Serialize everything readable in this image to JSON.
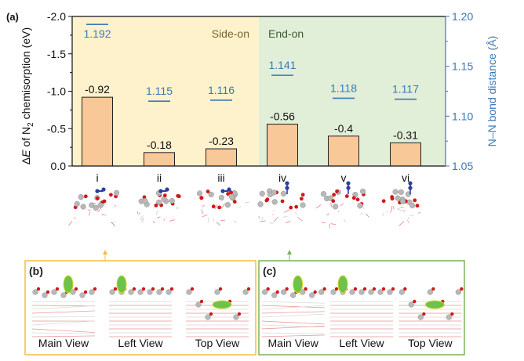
{
  "chart_data": {
    "type": "bar",
    "panel_label": "(a)",
    "categories": [
      "i",
      "ii",
      "iii",
      "iv",
      "v",
      "vi"
    ],
    "series": [
      {
        "name": "ΔE of N2 chemisorption (eV)",
        "axis": "left",
        "values": [
          -0.92,
          -0.18,
          -0.23,
          -0.56,
          -0.4,
          -0.31
        ],
        "labels": [
          "-0.92",
          "-0.18",
          "-0.23",
          "-0.56",
          "-0.4",
          "-0.31"
        ],
        "color": "#f9c898"
      },
      {
        "name": "N–N bond distance (Å)",
        "axis": "right",
        "values": [
          1.192,
          1.115,
          1.116,
          1.141,
          1.118,
          1.117
        ],
        "labels": [
          "1.192",
          "1.115",
          "1.116",
          "1.141",
          "1.118",
          "1.117"
        ],
        "color": "#3c78b4"
      }
    ],
    "ylabel": "ΔE of N2 chemisorption (eV)",
    "ylabel_parts": {
      "prefix": "Δ",
      "italic": "E",
      "mid": " of N",
      "sub": "2",
      "suffix": " chemisorption (eV)"
    },
    "ylim": [
      0.0,
      -2.0
    ],
    "yticks": [
      "0.0",
      "-0.5",
      "-1.0",
      "-1.5",
      "-2.0"
    ],
    "ytick_values": [
      0.0,
      -0.5,
      -1.0,
      -1.5,
      -2.0
    ],
    "y2label": "N–N bond distance (Å)",
    "y2lim": [
      1.05,
      1.2
    ],
    "y2ticks": [
      "1.05",
      "1.10",
      "1.15",
      "1.20"
    ],
    "y2tick_values": [
      1.05,
      1.1,
      1.15,
      1.2
    ],
    "regions": [
      {
        "label": "Side-on",
        "categories": [
          "i",
          "ii",
          "iii"
        ],
        "color": "#fdf2cc",
        "text_color": "#7a6230"
      },
      {
        "label": "End-on",
        "categories": [
          "iv",
          "v",
          "vi"
        ],
        "color": "#e1eed8",
        "text_color": "#3f5a32"
      }
    ],
    "grid": false,
    "legend": "none"
  },
  "subpanels": [
    {
      "label": "(b)",
      "border_color": "#f0c040",
      "views": [
        "Main View",
        "Left View",
        "Top View"
      ],
      "points_to": "i"
    },
    {
      "label": "(c)",
      "border_color": "#7cb35a",
      "views": [
        "Main View",
        "Left View",
        "Top View"
      ],
      "points_to": "iv"
    }
  ],
  "structure_icons": [
    "i",
    "ii",
    "iii",
    "iv",
    "v",
    "vi"
  ]
}
